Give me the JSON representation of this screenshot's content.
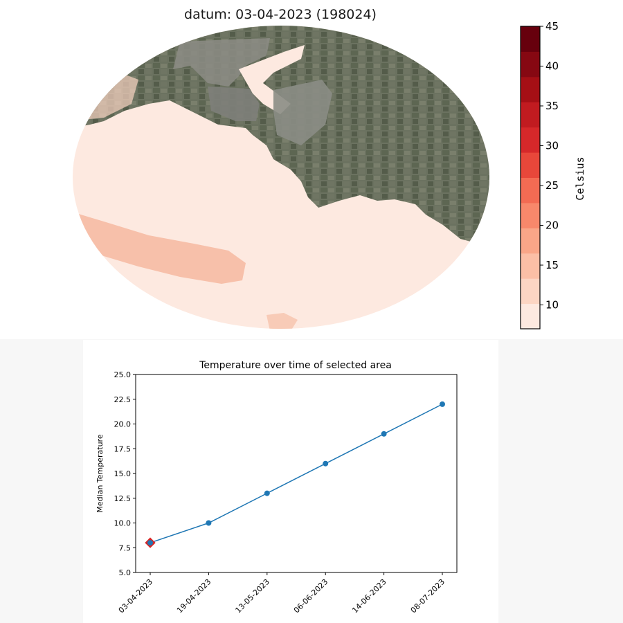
{
  "map": {
    "title": "datum: 03-04-2023 (198024)",
    "land_color": "#6b7260",
    "water_color": "#fde9e0",
    "warm_water_color": "#f6b8a0"
  },
  "colorbar": {
    "label": "Celsius",
    "ticks": [
      "45",
      "40",
      "35",
      "30",
      "25",
      "20",
      "15",
      "10"
    ],
    "min": 7,
    "max": 45,
    "colors": [
      "#fde9e0",
      "#fcd5c3",
      "#fbbfa6",
      "#f9a688",
      "#f8886b",
      "#f36b53",
      "#e8473a",
      "#d6282a",
      "#c11b20",
      "#a50f15",
      "#860812",
      "#67000d"
    ]
  },
  "chart_data": {
    "type": "line",
    "title": "Temperature over time of selected area",
    "xlabel": "",
    "ylabel": "Median Temperature",
    "categories": [
      "03-04-2023",
      "19-04-2023",
      "13-05-2023",
      "06-06-2023",
      "14-06-2023",
      "08-07-2023"
    ],
    "values": [
      8.0,
      10.0,
      13.0,
      16.0,
      19.0,
      22.0
    ],
    "ylim": [
      5.0,
      25.0
    ],
    "yticks": [
      "5.0",
      "7.5",
      "10.0",
      "12.5",
      "15.0",
      "17.5",
      "20.0",
      "22.5",
      "25.0"
    ],
    "highlight_index": 0,
    "line_color": "#1f77b4",
    "highlight_color": "#d62728",
    "grid": false
  }
}
